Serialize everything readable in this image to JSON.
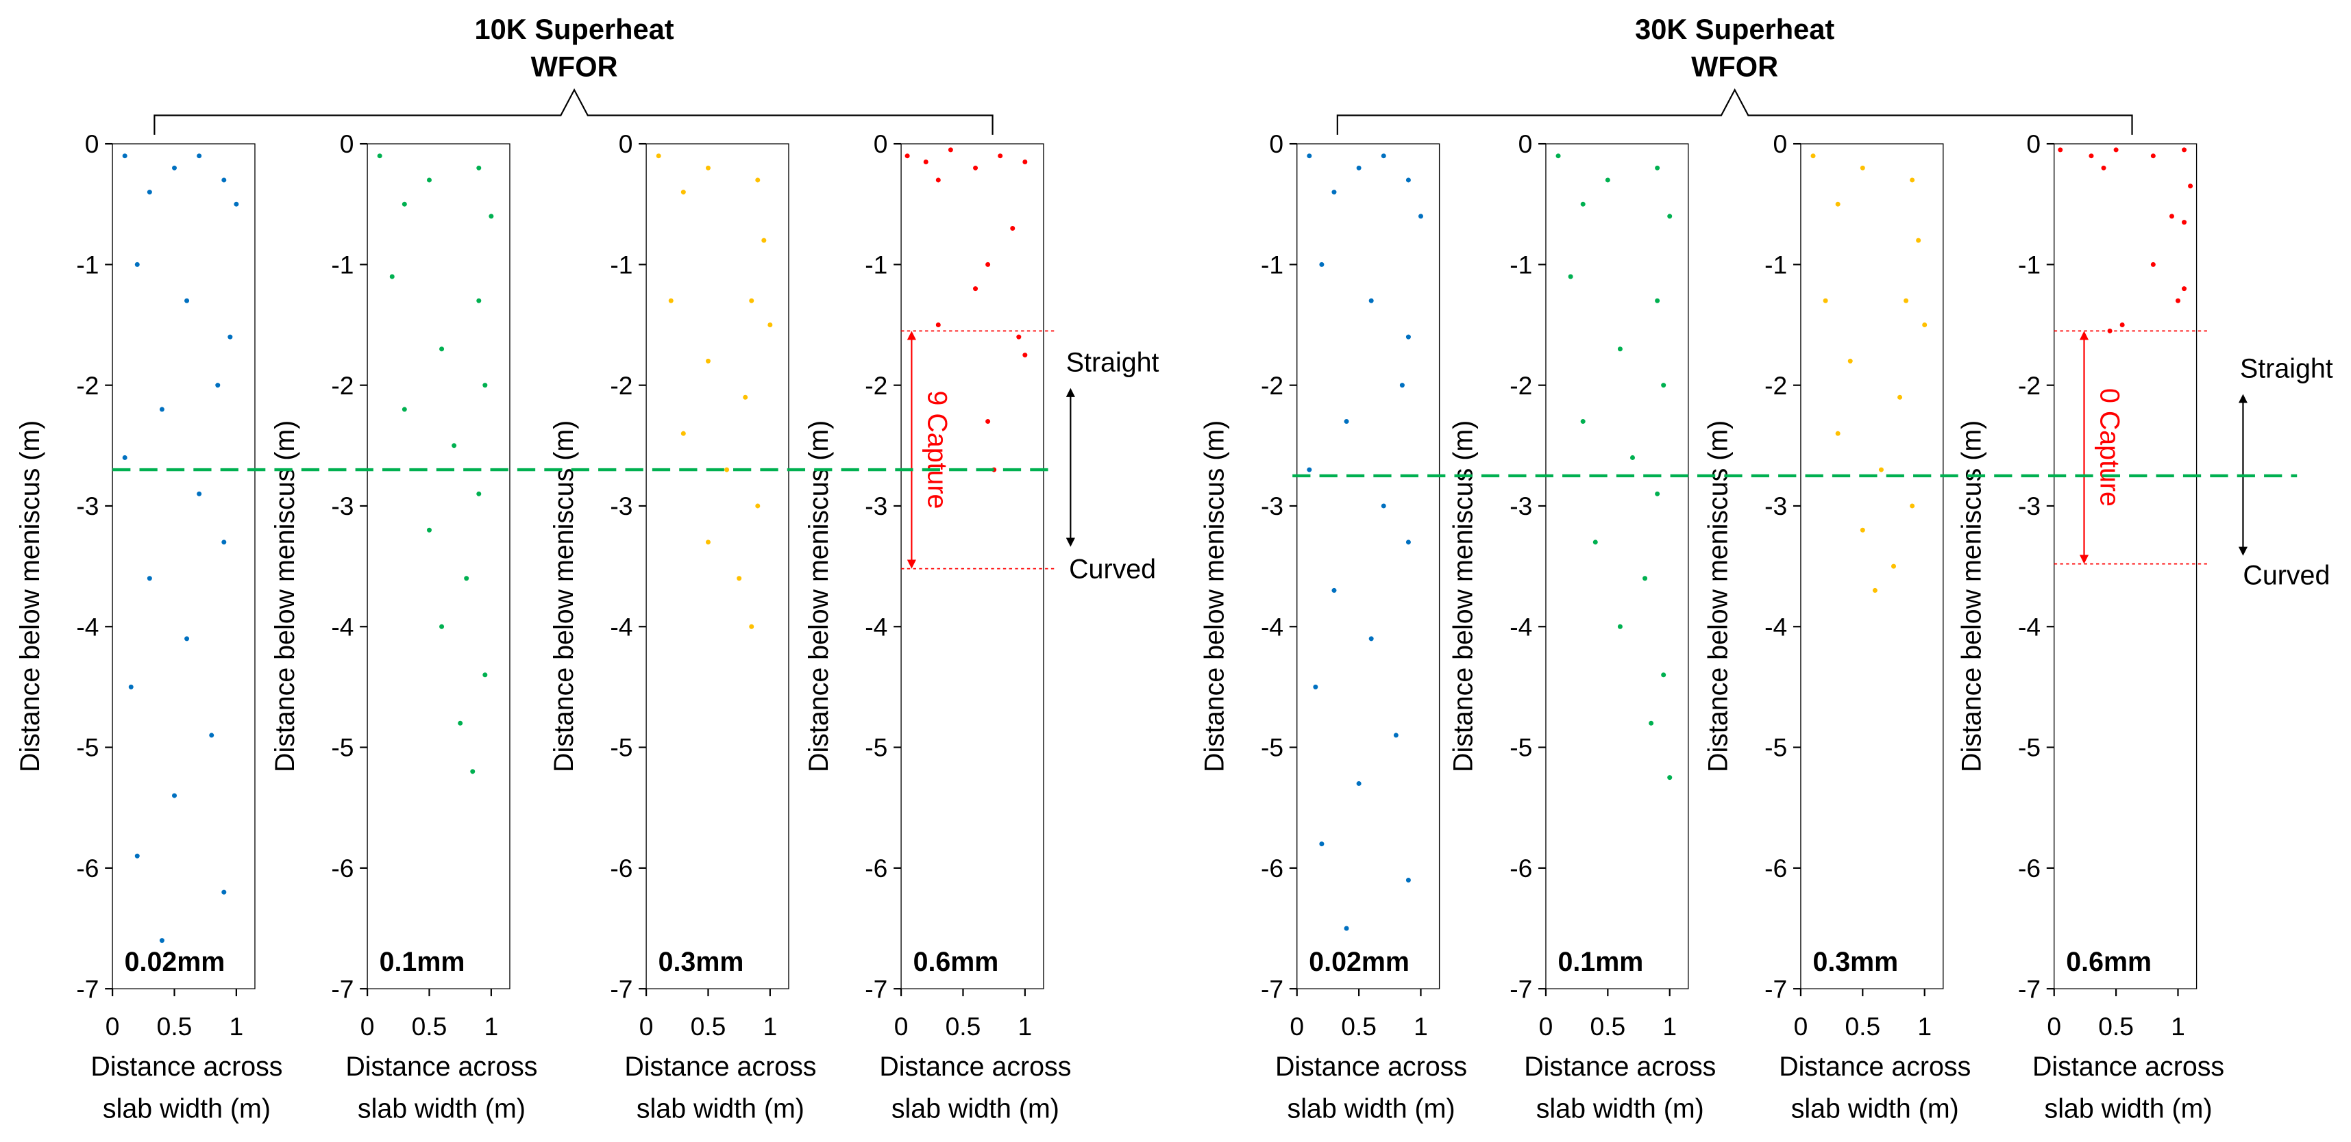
{
  "groups": [
    {
      "title": [
        "10K Superheat",
        "WFOR"
      ],
      "divider_y": -2.7,
      "straight": "Straight",
      "curved": "Curved"
    },
    {
      "title": [
        "30K Superheat",
        "WFOR"
      ],
      "divider_y": -2.75,
      "straight": "Straight",
      "curved": "Curved"
    }
  ],
  "chart_data": [
    {
      "type": "scatter",
      "label": "0.02mm",
      "color": "#0070c0",
      "xlabel": [
        "Distance across",
        "slab width (m)"
      ],
      "ylabel": "Distance below meniscus (m)",
      "xlim": [
        0,
        1.15
      ],
      "ylim": [
        -7,
        0
      ],
      "xticks": [
        0,
        0.5,
        1
      ],
      "yticks": [
        0,
        -1,
        -2,
        -3,
        -4,
        -5,
        -6,
        -7
      ],
      "x": [
        0.1,
        0.5,
        0.9,
        0.3,
        0.7,
        1.0,
        0.2,
        0.6,
        0.95,
        0.85,
        0.4,
        0.1,
        0.7,
        0.9,
        0.3,
        0.6,
        0.15,
        0.8,
        0.5,
        0.2,
        0.9,
        0.4
      ],
      "values": [
        -0.1,
        -0.2,
        -0.3,
        -0.4,
        -0.1,
        -0.5,
        -1.0,
        -1.3,
        -1.6,
        -2.0,
        -2.2,
        -2.6,
        -2.9,
        -3.3,
        -3.6,
        -4.1,
        -4.5,
        -4.9,
        -5.4,
        -5.9,
        -6.2,
        -6.6
      ]
    },
    {
      "type": "scatter",
      "label": "0.1mm",
      "color": "#00b050",
      "xlabel": [
        "Distance across",
        "slab width (m)"
      ],
      "ylabel": "Distance below meniscus (m)",
      "xlim": [
        0,
        1.15
      ],
      "ylim": [
        -7,
        0
      ],
      "xticks": [
        0,
        0.5,
        1
      ],
      "yticks": [
        0,
        -1,
        -2,
        -3,
        -4,
        -5,
        -6,
        -7
      ],
      "x": [
        0.1,
        0.5,
        0.9,
        0.3,
        1.0,
        0.2,
        0.9,
        0.6,
        0.95,
        0.3,
        0.7,
        0.9,
        0.5,
        0.8,
        0.6,
        0.95,
        0.75,
        0.85
      ],
      "values": [
        -0.1,
        -0.3,
        -0.2,
        -0.5,
        -0.6,
        -1.1,
        -1.3,
        -1.7,
        -2.0,
        -2.2,
        -2.5,
        -2.9,
        -3.2,
        -3.6,
        -4.0,
        -4.4,
        -4.8,
        -5.2
      ]
    },
    {
      "type": "scatter",
      "label": "0.3mm",
      "color": "#ffc000",
      "xlabel": [
        "Distance across",
        "slab width (m)"
      ],
      "ylabel": "Distance below meniscus (m)",
      "xlim": [
        0,
        1.15
      ],
      "ylim": [
        -7,
        0
      ],
      "xticks": [
        0,
        0.5,
        1
      ],
      "yticks": [
        0,
        -1,
        -2,
        -3,
        -4,
        -5,
        -6,
        -7
      ],
      "x": [
        0.1,
        0.5,
        0.9,
        0.3,
        0.95,
        0.2,
        0.85,
        1.0,
        0.5,
        0.8,
        0.3,
        0.65,
        0.9,
        0.5,
        0.75,
        0.85
      ],
      "values": [
        -0.1,
        -0.2,
        -0.3,
        -0.4,
        -0.8,
        -1.3,
        -1.3,
        -1.5,
        -1.8,
        -2.1,
        -2.4,
        -2.7,
        -3.0,
        -3.3,
        -3.6,
        -4.0
      ]
    },
    {
      "type": "scatter",
      "label": "0.6mm",
      "color": "#ff0000",
      "xlabel": [
        "Distance across",
        "slab width (m)"
      ],
      "ylabel": "Distance below meniscus (m)",
      "xlim": [
        0,
        1.15
      ],
      "ylim": [
        -7,
        0
      ],
      "xticks": [
        0,
        0.5,
        1
      ],
      "yticks": [
        0,
        -1,
        -2,
        -3,
        -4,
        -5,
        -6,
        -7
      ],
      "annotation": "9 Capture",
      "capture_range": [
        -1.55,
        -3.52
      ],
      "x": [
        0.05,
        0.2,
        0.4,
        0.6,
        0.8,
        1.0,
        0.3,
        0.9,
        0.7,
        0.6,
        0.3,
        0.95,
        1.0,
        0.7,
        0.75
      ],
      "values": [
        -0.1,
        -0.15,
        -0.05,
        -0.2,
        -0.1,
        -0.15,
        -0.3,
        -0.7,
        -1.0,
        -1.2,
        -1.5,
        -1.6,
        -1.75,
        -2.3,
        -2.7
      ]
    },
    {
      "type": "scatter",
      "label": "0.02mm",
      "color": "#0070c0",
      "xlabel": [
        "Distance across",
        "slab width (m)"
      ],
      "ylabel": "Distance below meniscus (m)",
      "xlim": [
        0,
        1.15
      ],
      "ylim": [
        -7,
        0
      ],
      "xticks": [
        0,
        0.5,
        1
      ],
      "yticks": [
        0,
        -1,
        -2,
        -3,
        -4,
        -5,
        -6,
        -7
      ],
      "x": [
        0.1,
        0.5,
        0.9,
        0.3,
        0.7,
        1.0,
        0.2,
        0.6,
        0.9,
        0.85,
        0.4,
        0.1,
        0.7,
        0.9,
        0.3,
        0.6,
        0.15,
        0.8,
        0.5,
        0.2,
        0.9,
        0.4
      ],
      "values": [
        -0.1,
        -0.2,
        -0.3,
        -0.4,
        -0.1,
        -0.6,
        -1.0,
        -1.3,
        -1.6,
        -2.0,
        -2.3,
        -2.7,
        -3.0,
        -3.3,
        -3.7,
        -4.1,
        -4.5,
        -4.9,
        -5.3,
        -5.8,
        -6.1,
        -6.5
      ]
    },
    {
      "type": "scatter",
      "label": "0.1mm",
      "color": "#00b050",
      "xlabel": [
        "Distance across",
        "slab width (m)"
      ],
      "ylabel": "Distance below meniscus (m)",
      "xlim": [
        0,
        1.15
      ],
      "ylim": [
        -7,
        0
      ],
      "xticks": [
        0,
        0.5,
        1
      ],
      "yticks": [
        0,
        -1,
        -2,
        -3,
        -4,
        -5,
        -6,
        -7
      ],
      "x": [
        0.1,
        0.5,
        0.9,
        0.3,
        1.0,
        0.2,
        0.9,
        0.6,
        0.95,
        0.3,
        0.7,
        0.9,
        0.4,
        0.8,
        0.6,
        0.95,
        0.85,
        1.0
      ],
      "values": [
        -0.1,
        -0.3,
        -0.2,
        -0.5,
        -0.6,
        -1.1,
        -1.3,
        -1.7,
        -2.0,
        -2.3,
        -2.6,
        -2.9,
        -3.3,
        -3.6,
        -4.0,
        -4.4,
        -4.8,
        -5.25
      ]
    },
    {
      "type": "scatter",
      "label": "0.3mm",
      "color": "#ffc000",
      "xlabel": [
        "Distance across",
        "slab width (m)"
      ],
      "ylabel": "Distance below meniscus (m)",
      "xlim": [
        0,
        1.15
      ],
      "ylim": [
        -7,
        0
      ],
      "xticks": [
        0,
        0.5,
        1
      ],
      "yticks": [
        0,
        -1,
        -2,
        -3,
        -4,
        -5,
        -6,
        -7
      ],
      "x": [
        0.1,
        0.5,
        0.9,
        0.3,
        0.95,
        0.2,
        0.85,
        1.0,
        0.4,
        0.8,
        0.3,
        0.65,
        0.9,
        0.5,
        0.75,
        0.6
      ],
      "values": [
        -0.1,
        -0.2,
        -0.3,
        -0.5,
        -0.8,
        -1.3,
        -1.3,
        -1.5,
        -1.8,
        -2.1,
        -2.4,
        -2.7,
        -3.0,
        -3.2,
        -3.5,
        -3.7
      ]
    },
    {
      "type": "scatter",
      "label": "0.6mm",
      "color": "#ff0000",
      "xlabel": [
        "Distance across",
        "slab width (m)"
      ],
      "ylabel": "Distance below meniscus (m)",
      "xlim": [
        0,
        1.15
      ],
      "ylim": [
        -7,
        0
      ],
      "xticks": [
        0,
        0.5,
        1
      ],
      "yticks": [
        0,
        -1,
        -2,
        -3,
        -4,
        -5,
        -6,
        -7
      ],
      "annotation": "0 Capture",
      "capture_range": [
        -1.55,
        -3.48
      ],
      "x": [
        0.05,
        0.3,
        0.5,
        0.8,
        1.05,
        0.4,
        1.1,
        0.95,
        1.05,
        0.8,
        1.0,
        1.05,
        0.55,
        0.45
      ],
      "values": [
        -0.05,
        -0.1,
        -0.05,
        -0.1,
        -0.05,
        -0.2,
        -0.35,
        -0.6,
        -0.65,
        -1.0,
        -1.3,
        -1.2,
        -1.5,
        -1.55
      ]
    }
  ]
}
